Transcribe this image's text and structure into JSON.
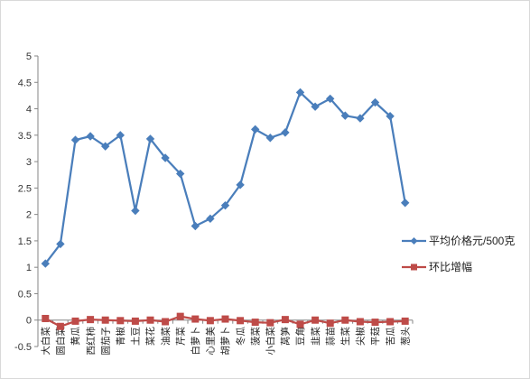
{
  "chart_data": {
    "type": "line",
    "categories": [
      "大白菜",
      "圆白菜",
      "黄瓜",
      "西红柿",
      "圆茄子",
      "青椒",
      "土豆",
      "菜花",
      "油菜",
      "芹菜",
      "白萝卜",
      "心里美",
      "胡萝卜",
      "冬瓜",
      "菠菜",
      "小白菜",
      "莴笋",
      "豆角",
      "韭菜",
      "蒜苗",
      "生菜",
      "尖椒",
      "平菇",
      "苦瓜",
      "葱头"
    ],
    "series": [
      {
        "name": "平均价格元/500克",
        "color": "#4a7ebb",
        "marker": "diamond",
        "values": [
          1.07,
          1.44,
          3.41,
          3.48,
          3.29,
          3.5,
          2.07,
          3.43,
          3.07,
          2.77,
          1.78,
          1.92,
          2.17,
          2.56,
          3.61,
          3.45,
          3.55,
          4.31,
          4.04,
          4.19,
          3.87,
          3.82,
          4.12,
          3.86,
          2.22
        ]
      },
      {
        "name": "环比增幅",
        "color": "#be4b48",
        "marker": "square",
        "values": [
          0.03,
          -0.12,
          -0.02,
          0.01,
          0.0,
          -0.01,
          -0.02,
          0.0,
          -0.03,
          0.07,
          0.02,
          -0.01,
          0.02,
          -0.01,
          -0.04,
          -0.05,
          0.01,
          -0.08,
          0.0,
          -0.06,
          0.0,
          -0.03,
          -0.04,
          -0.03,
          -0.02
        ]
      }
    ],
    "ylim": [
      -0.5,
      5
    ],
    "yticks": [
      "-0.5",
      "0",
      "0.5",
      "1",
      "1.5",
      "2",
      "2.5",
      "3",
      "3.5",
      "4",
      "4.5",
      "5"
    ],
    "grid": false,
    "legend_position": "right"
  }
}
